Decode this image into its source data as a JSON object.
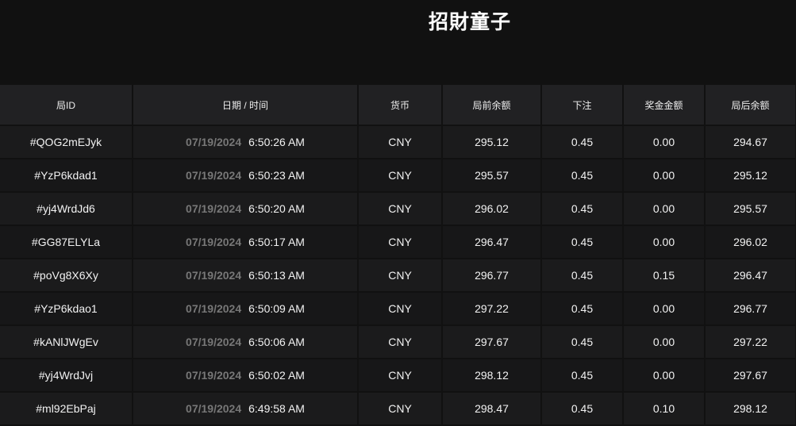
{
  "header": {
    "title": "招財童子"
  },
  "table": {
    "columns": [
      "局ID",
      "日期 / 时间",
      "货币",
      "局前余额",
      "下注",
      "奖金金额",
      "局后余额"
    ],
    "rows": [
      {
        "id": "#QOG2mEJyk",
        "date": "07/19/2024",
        "time": "6:50:26 AM",
        "currency": "CNY",
        "before": "295.12",
        "bet": "0.45",
        "win": "0.00",
        "after": "294.67"
      },
      {
        "id": "#YzP6kdad1",
        "date": "07/19/2024",
        "time": "6:50:23 AM",
        "currency": "CNY",
        "before": "295.57",
        "bet": "0.45",
        "win": "0.00",
        "after": "295.12"
      },
      {
        "id": "#yj4WrdJd6",
        "date": "07/19/2024",
        "time": "6:50:20 AM",
        "currency": "CNY",
        "before": "296.02",
        "bet": "0.45",
        "win": "0.00",
        "after": "295.57"
      },
      {
        "id": "#GG87ELYLa",
        "date": "07/19/2024",
        "time": "6:50:17 AM",
        "currency": "CNY",
        "before": "296.47",
        "bet": "0.45",
        "win": "0.00",
        "after": "296.02"
      },
      {
        "id": "#poVg8X6Xy",
        "date": "07/19/2024",
        "time": "6:50:13 AM",
        "currency": "CNY",
        "before": "296.77",
        "bet": "0.45",
        "win": "0.15",
        "after": "296.47"
      },
      {
        "id": "#YzP6kdao1",
        "date": "07/19/2024",
        "time": "6:50:09 AM",
        "currency": "CNY",
        "before": "297.22",
        "bet": "0.45",
        "win": "0.00",
        "after": "296.77"
      },
      {
        "id": "#kANlJWgEv",
        "date": "07/19/2024",
        "time": "6:50:06 AM",
        "currency": "CNY",
        "before": "297.67",
        "bet": "0.45",
        "win": "0.00",
        "after": "297.22"
      },
      {
        "id": "#yj4WrdJvj",
        "date": "07/19/2024",
        "time": "6:50:02 AM",
        "currency": "CNY",
        "before": "298.12",
        "bet": "0.45",
        "win": "0.00",
        "after": "297.67"
      },
      {
        "id": "#ml92EbPaj",
        "date": "07/19/2024",
        "time": "6:49:58 AM",
        "currency": "CNY",
        "before": "298.47",
        "bet": "0.45",
        "win": "0.10",
        "after": "298.12"
      }
    ]
  }
}
